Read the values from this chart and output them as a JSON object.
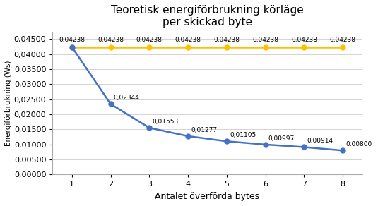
{
  "title": "Teoretisk energiförbrukning körläge\nper skickad byte",
  "xlabel": "Antalet överförda bytes",
  "ylabel": "Energiförbrukning (Ws)",
  "x": [
    1,
    2,
    3,
    4,
    5,
    6,
    7,
    8
  ],
  "blue_values": [
    0.04238,
    0.02344,
    0.01553,
    0.01277,
    0.01105,
    0.00997,
    0.00914,
    0.008
  ],
  "yellow_values": [
    0.04238,
    0.04238,
    0.04238,
    0.04238,
    0.04238,
    0.04238,
    0.04238,
    0.04238
  ],
  "blue_labels": [
    null,
    "0,02344",
    "0,01553",
    "0,01277",
    "0,01105",
    "0,00997",
    "0,00914",
    "0,00800"
  ],
  "yellow_labels": [
    "0,04238",
    "0,04238",
    "0,04238",
    "0,04238",
    "0,04238",
    "0,04238",
    "0,04238",
    "0,04238"
  ],
  "blue_color": "#4472C4",
  "yellow_color": "#FFC000",
  "bg_color": "#FFFFFF",
  "grid_color": "#D3D3D3",
  "ylim": [
    0,
    0.0475
  ],
  "title_fontsize": 11,
  "label_fontsize": 8,
  "annotation_fontsize": 6.5,
  "yticks": [
    0.0,
    0.005,
    0.01,
    0.015,
    0.02,
    0.025,
    0.03,
    0.035,
    0.04,
    0.045
  ]
}
